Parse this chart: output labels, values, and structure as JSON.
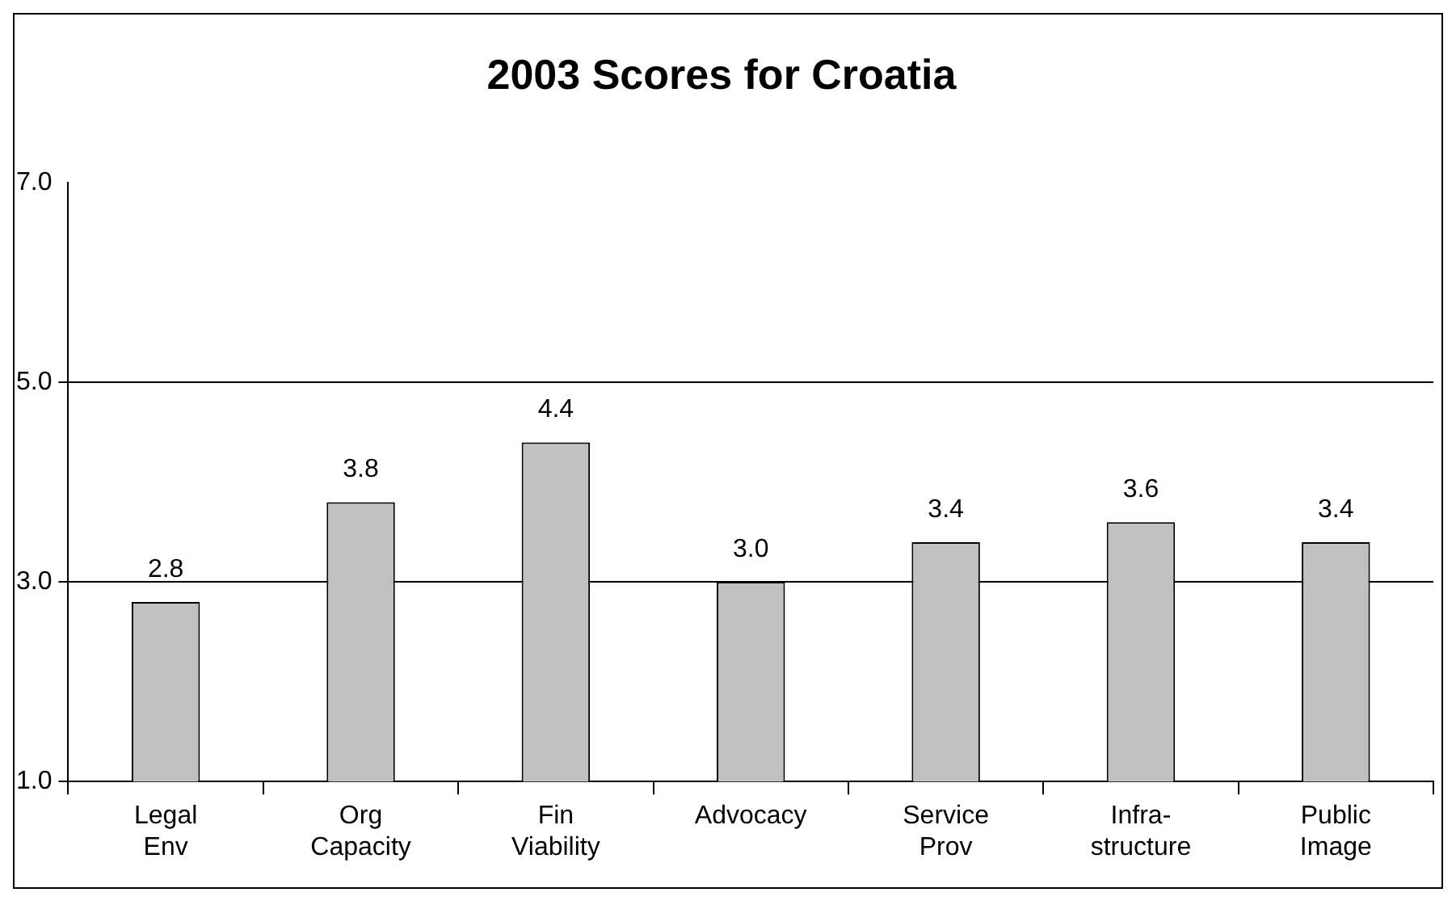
{
  "chart_data": {
    "type": "bar",
    "title": "2003 Scores for Croatia",
    "categories": [
      "Legal\nEnv",
      "Org\nCapacity",
      "Fin\nViability",
      "Advocacy",
      "Service\nProv",
      "Infra-\nstructure",
      "Public\nImage"
    ],
    "values": [
      2.8,
      3.8,
      4.4,
      3.0,
      3.4,
      3.6,
      3.4
    ],
    "value_labels": [
      "2.8",
      "3.8",
      "4.4",
      "3.0",
      "3.4",
      "3.6",
      "3.4"
    ],
    "color": "#c0c0c0",
    "ylim": [
      1,
      7
    ],
    "yticks": [
      {
        "value": 1,
        "label": "1.0"
      },
      {
        "value": 3,
        "label": "3.0"
      },
      {
        "value": 5,
        "label": "5.0"
      },
      {
        "value": 7,
        "label": "7.0"
      }
    ],
    "grid": "y",
    "legend": false
  }
}
